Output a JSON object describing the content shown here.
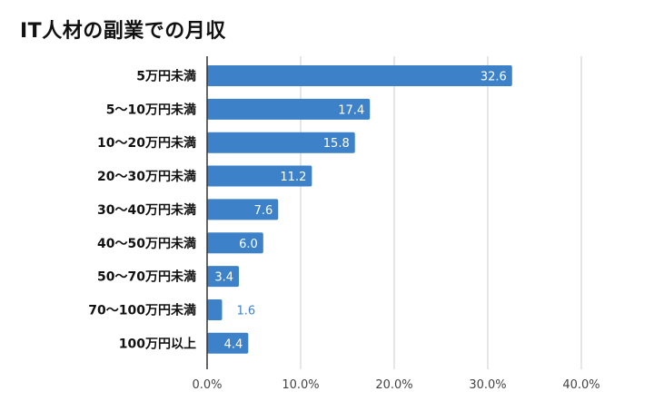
{
  "chart_data": {
    "type": "bar",
    "orientation": "horizontal",
    "title": "IT人材の副業での月収",
    "categories": [
      "5万円未満",
      "5〜10万円未満",
      "10〜20万円未満",
      "20〜30万円未満",
      "30〜40万円未満",
      "40〜50万円未満",
      "50〜70万円未満",
      "70〜100万円未満",
      "100万円以上"
    ],
    "values": [
      32.6,
      17.4,
      15.8,
      11.2,
      7.6,
      6.0,
      3.4,
      1.6,
      4.4
    ],
    "value_labels": [
      "32.6",
      "17.4",
      "15.8",
      "11.2",
      "7.6",
      "6.0",
      "3.4",
      "1.6",
      "4.4"
    ],
    "x_ticks": [
      "0.0%",
      "10.0%",
      "20.0%",
      "30.0%",
      "40.0%"
    ],
    "xlim": [
      0,
      40
    ],
    "grid": true,
    "legend": "none",
    "colors": {
      "bar": "#3d82c8",
      "label_inside": "#ffffff",
      "label_outside": "#3d82c8",
      "grid": "#cccccc",
      "axis": "#333333"
    }
  }
}
